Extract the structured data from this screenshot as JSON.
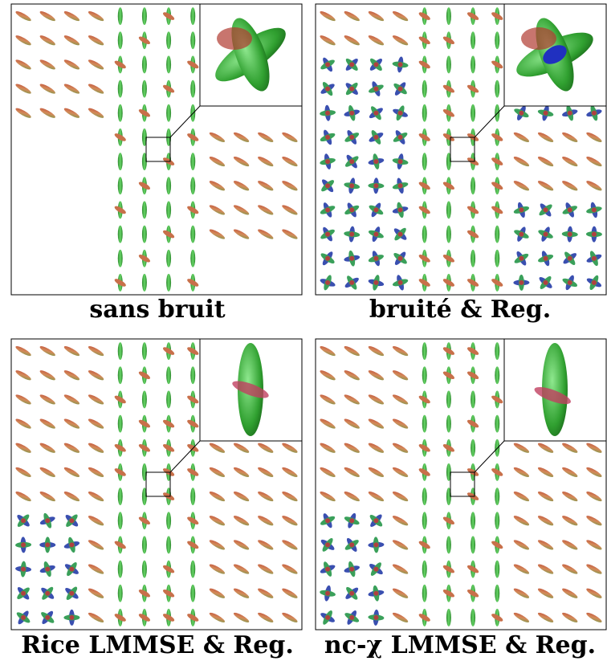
{
  "panels": [
    {
      "caption": "sans bruit"
    },
    {
      "caption": "bruité & Reg."
    },
    {
      "caption": "Rice LMMSE & Reg."
    },
    {
      "caption": "nc-χ LMMSE & Reg."
    }
  ]
}
